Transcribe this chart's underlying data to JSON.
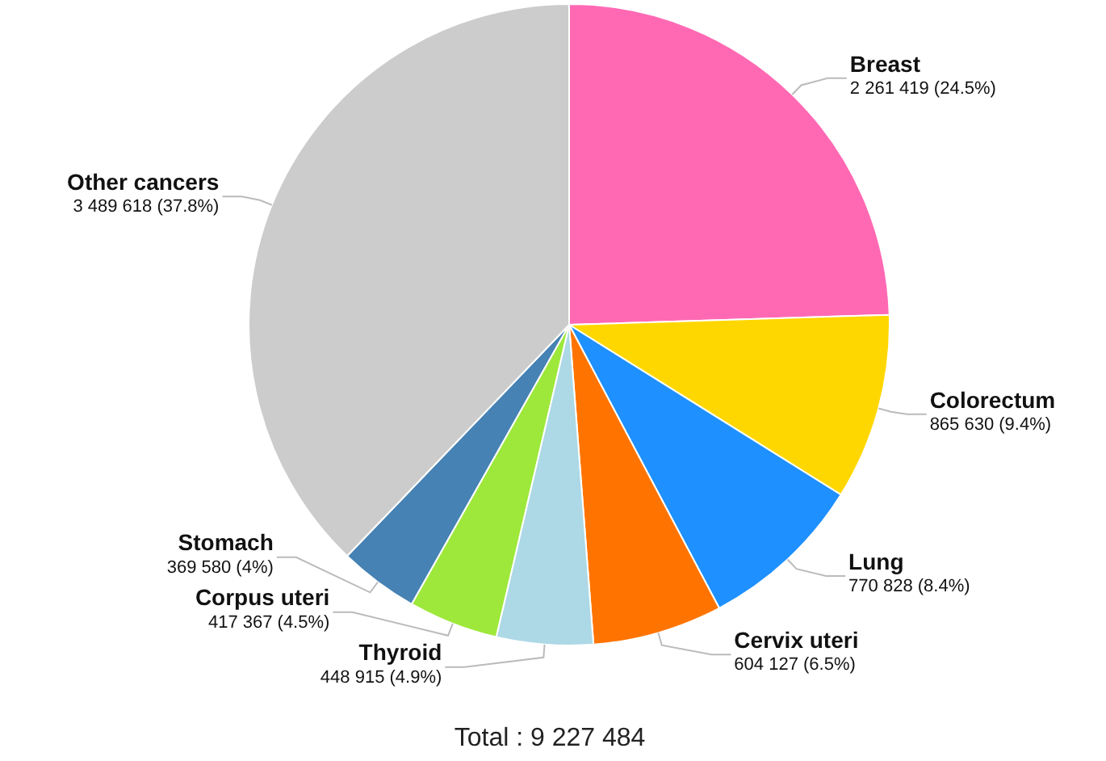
{
  "chart_data": {
    "type": "pie",
    "categories": [
      "Breast",
      "Colorectum",
      "Lung",
      "Cervix uteri",
      "Thyroid",
      "Corpus uteri",
      "Stomach",
      "Other cancers"
    ],
    "values": [
      2261419,
      865630,
      770828,
      604127,
      448915,
      417367,
      369580,
      3489618
    ],
    "value_labels": [
      "2 261 419 (24.5%)",
      "865 630 (9.4%)",
      "770 828 (8.4%)",
      "604 127 (6.5%)",
      "448 915 (4.9%)",
      "417 367 (4.5%)",
      "369 580 (4%)",
      "3 489 618 (37.8%)"
    ],
    "colors": [
      "#ff69b4",
      "#ffd700",
      "#1e90ff",
      "#ff7400",
      "#add8e6",
      "#9de83a",
      "#4682b4",
      "#cccccc"
    ],
    "annotations": [
      "Total : 9 227 484"
    ],
    "legend": false
  }
}
